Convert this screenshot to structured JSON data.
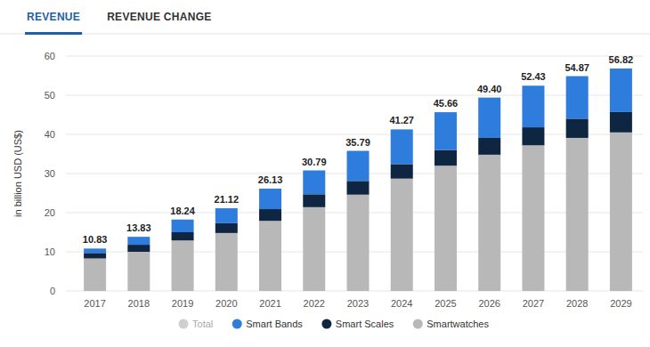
{
  "tabs": [
    "REVENUE",
    "REVENUE CHANGE"
  ],
  "chart_data": {
    "type": "bar",
    "stacked": true,
    "ylabel": "in billion USD (US$)",
    "categories": [
      "2017",
      "2018",
      "2019",
      "2020",
      "2021",
      "2022",
      "2023",
      "2024",
      "2025",
      "2026",
      "2027",
      "2028",
      "2029"
    ],
    "ylim": [
      0,
      60
    ],
    "yticks": [
      0,
      10,
      20,
      30,
      40,
      50,
      60
    ],
    "grid": true,
    "legend": "bottom",
    "data_labels": true,
    "series": [
      {
        "name": "Total",
        "type": "label",
        "color": "#cfcfcf",
        "values": [
          10.83,
          13.83,
          18.24,
          21.12,
          26.13,
          30.79,
          35.79,
          41.27,
          45.66,
          49.4,
          52.43,
          54.87,
          56.82
        ],
        "value_labels": [
          "10.83",
          "13.83",
          "18.24",
          "21.12",
          "26.13",
          "30.79",
          "35.79",
          "41.27",
          "45.66",
          "49.40",
          "52.43",
          "54.87",
          "56.82"
        ]
      },
      {
        "name": "Smart Bands",
        "type": "bar",
        "color": "#2e7cdc",
        "values": [
          1.13,
          2.03,
          3.24,
          3.82,
          5.23,
          6.09,
          7.69,
          8.87,
          9.66,
          10.3,
          10.63,
          10.87,
          11.12
        ]
      },
      {
        "name": "Smart Scales",
        "type": "bar",
        "color": "#0f2642",
        "values": [
          1.4,
          1.8,
          2.1,
          2.5,
          3.0,
          3.3,
          3.5,
          3.7,
          4.0,
          4.3,
          4.6,
          4.9,
          5.2
        ]
      },
      {
        "name": "Smartwatches",
        "type": "bar",
        "color": "#b8b8b8",
        "values": [
          8.3,
          10.0,
          12.9,
          14.8,
          17.9,
          21.4,
          24.6,
          28.7,
          32.0,
          34.8,
          37.2,
          39.1,
          40.5
        ]
      }
    ]
  }
}
